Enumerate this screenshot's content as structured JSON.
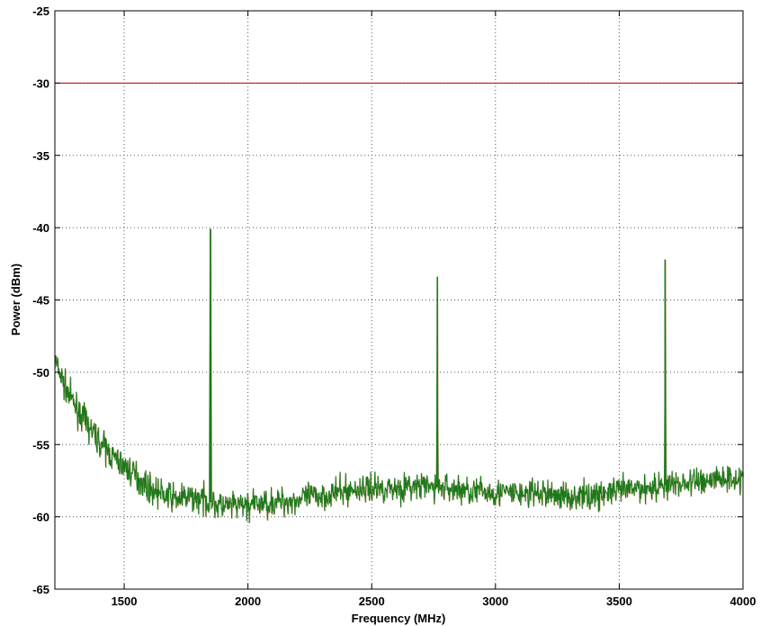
{
  "chart_data": {
    "type": "line",
    "title": "",
    "xlabel": "Frequency (MHz)",
    "ylabel": "Power (dBm)",
    "xlim": [
      1220,
      4000
    ],
    "ylim": [
      -65,
      -25
    ],
    "xticks": [
      1500,
      2000,
      2500,
      3000,
      3500,
      4000
    ],
    "yticks": [
      -25,
      -30,
      -35,
      -40,
      -45,
      -50,
      -55,
      -60,
      -65
    ],
    "grid": true,
    "threshold": {
      "y": -30,
      "color": "#c00000"
    },
    "colors": {
      "trace": "#1a7a1a",
      "trace_shadow": "#a0602a",
      "grid": "#555555"
    },
    "series": [
      {
        "noise_floor": [
          [
            1220,
            -49.2
          ],
          [
            1260,
            -51.0
          ],
          [
            1300,
            -52.3
          ],
          [
            1350,
            -53.6
          ],
          [
            1400,
            -54.8
          ],
          [
            1450,
            -55.8
          ],
          [
            1500,
            -56.5
          ],
          [
            1550,
            -57.2
          ],
          [
            1600,
            -58.0
          ],
          [
            1650,
            -58.4
          ],
          [
            1700,
            -58.7
          ],
          [
            1800,
            -58.7
          ],
          [
            1900,
            -59.3
          ],
          [
            2000,
            -59.2
          ],
          [
            2100,
            -59.0
          ],
          [
            2200,
            -58.8
          ],
          [
            2300,
            -58.5
          ],
          [
            2400,
            -58.2
          ],
          [
            2500,
            -58.0
          ],
          [
            2600,
            -58.0
          ],
          [
            2700,
            -57.9
          ],
          [
            2800,
            -58.0
          ],
          [
            2900,
            -58.2
          ],
          [
            3000,
            -58.3
          ],
          [
            3100,
            -58.4
          ],
          [
            3200,
            -58.4
          ],
          [
            3300,
            -58.6
          ],
          [
            3400,
            -58.5
          ],
          [
            3500,
            -58.2
          ],
          [
            3600,
            -58.0
          ],
          [
            3700,
            -57.8
          ],
          [
            3800,
            -57.6
          ],
          [
            3900,
            -57.3
          ],
          [
            4000,
            -57.3
          ]
        ],
        "spikes": [
          {
            "x": 1848,
            "y": -40.1
          },
          {
            "x": 2765,
            "y": -43.4
          },
          {
            "x": 3685,
            "y": -42.2
          }
        ]
      }
    ]
  }
}
